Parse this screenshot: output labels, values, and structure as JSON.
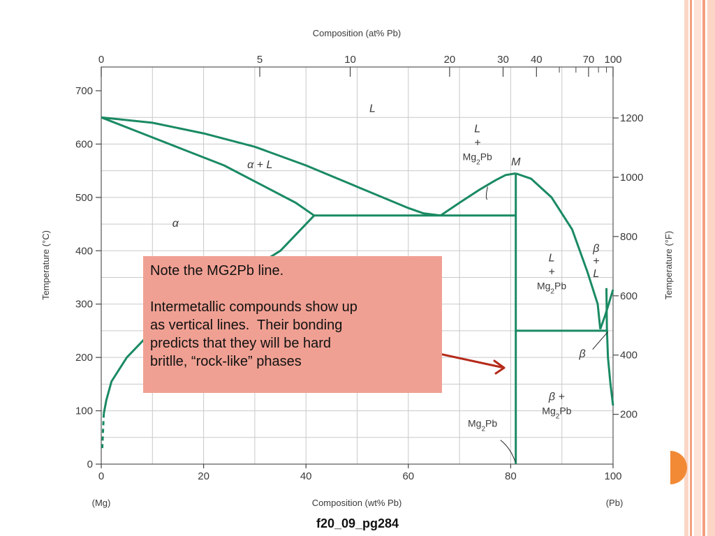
{
  "colors": {
    "phase_line": "#1a8a62",
    "note_fill": "#f0a093",
    "arrow": "#b52a1a",
    "grid": "#c9c9c9",
    "accent_border": "#f4a07e",
    "bubble": "#f28a35"
  },
  "chart_data": {
    "type": "phase-diagram",
    "top_axis": {
      "label": "Composition (at% Pb)",
      "ticks": [
        "0",
        "5",
        "10",
        "20",
        "30",
        "40",
        "70",
        "100"
      ]
    },
    "bottom_axis": {
      "label": "Composition (wt% Pb)",
      "ticks": [
        0,
        20,
        40,
        60,
        80,
        100
      ],
      "range": [
        0,
        100
      ],
      "left_end": "(Mg)",
      "right_end": "(Pb)"
    },
    "left_axis": {
      "label": "Temperature (°C)",
      "ticks": [
        0,
        100,
        200,
        300,
        400,
        500,
        600,
        700
      ],
      "range": [
        0,
        700
      ]
    },
    "right_axis": {
      "label": "Temperature (°F)",
      "ticks": [
        200,
        400,
        600,
        800,
        1000,
        1200
      ]
    },
    "grid": true,
    "regions": {
      "L": "L",
      "alpha_L": "α + L",
      "alpha": "α",
      "L_mg2pb_left": [
        "L",
        "+",
        "Mg2Pb"
      ],
      "M": "M",
      "L_mg2pb_right": [
        "L",
        "+",
        "Mg2Pb"
      ],
      "beta_L": [
        "β",
        "+",
        "L"
      ],
      "beta": "β",
      "beta_mg2pb": [
        "β +",
        "Mg2Pb"
      ],
      "mg2pb": "Mg2Pb"
    },
    "lines": {
      "liquidus_alpha": [
        [
          0,
          650
        ],
        [
          10,
          640
        ],
        [
          20,
          620
        ],
        [
          30,
          595
        ],
        [
          40,
          560
        ],
        [
          50,
          520
        ],
        [
          55,
          500
        ],
        [
          60,
          480
        ],
        [
          63,
          470
        ],
        [
          66.3,
          466
        ]
      ],
      "solidus_alpha": [
        [
          0,
          650
        ],
        [
          8,
          620
        ],
        [
          16,
          590
        ],
        [
          24,
          560
        ],
        [
          32,
          520
        ],
        [
          38,
          490
        ],
        [
          41.6,
          466
        ]
      ],
      "solvus_alpha": [
        [
          0.5,
          95
        ],
        [
          1,
          120
        ],
        [
          2,
          155
        ],
        [
          5,
          200
        ],
        [
          10,
          250
        ],
        [
          15,
          290
        ],
        [
          20,
          320
        ],
        [
          30,
          370
        ],
        [
          35,
          400
        ],
        [
          40,
          450
        ],
        [
          41.6,
          466
        ]
      ],
      "eutectic_1": {
        "temperature": 466,
        "from": 41.6,
        "to": 81
      },
      "liquidus_mg2pb_left": [
        [
          66.3,
          466
        ],
        [
          70,
          490
        ],
        [
          74,
          515
        ],
        [
          77,
          532
        ],
        [
          79,
          542
        ],
        [
          81,
          545
        ]
      ],
      "liquidus_mg2pb_right": [
        [
          81,
          545
        ],
        [
          84,
          535
        ],
        [
          88,
          500
        ],
        [
          92,
          440
        ],
        [
          95,
          360
        ],
        [
          97,
          300
        ],
        [
          97.5,
          253
        ]
      ],
      "mg2pb_line": {
        "x": 81,
        "from": 0,
        "to": 545
      },
      "eutectic_2": {
        "temperature": 250,
        "from": 81,
        "to": 99
      },
      "beta_L_liquidus": [
        [
          97.5,
          253
        ],
        [
          98.5,
          280
        ],
        [
          100,
          327
        ]
      ],
      "beta_solvus": [
        [
          98.7,
          330
        ],
        [
          98.8,
          253
        ],
        [
          99,
          200
        ],
        [
          99.5,
          150
        ],
        [
          100,
          110
        ]
      ]
    }
  },
  "note": {
    "heading": "Note the MG2Pb line.",
    "body": "Intermetallic compounds show up\nas vertical lines.  Their bonding\npredicts that they will be hard\nbritlle, “rock-like” phases"
  },
  "caption": "f20_09_pg284"
}
